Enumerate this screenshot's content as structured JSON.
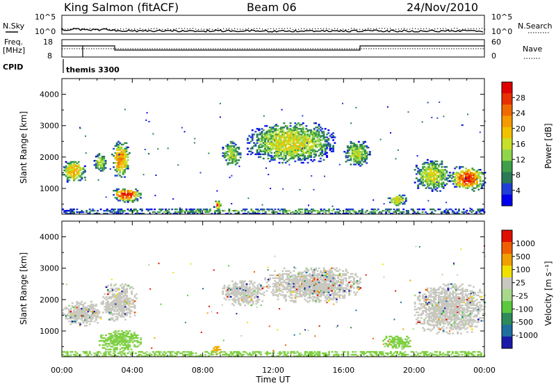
{
  "header": {
    "station": "King Salmon (fitACF)",
    "beam": "Beam 06",
    "date": "24/Nov/2010"
  },
  "summary_panels": {
    "left_labels": {
      "nsky": "N.Sky",
      "freq": "Freq.",
      "freq_unit": "[MHz]",
      "cpid": "CPID"
    },
    "right_labels": {
      "nsearch": "N.Search",
      "nave": "Nave"
    },
    "noise_ticks_left": [
      "10^5",
      "10^0"
    ],
    "noise_ticks_right": [
      "10^5",
      "10^0"
    ],
    "freq_ticks": [
      "18",
      "8"
    ],
    "nave_ticks": [
      "60",
      "0"
    ],
    "cpid_text": "themis 3300"
  },
  "chart_data": [
    {
      "type": "heatmap",
      "name": "power",
      "ylabel": "Slant Range [km]",
      "xlabel": "",
      "ylim": [
        180,
        4500
      ],
      "yticks": [
        1000,
        2000,
        3000,
        4000
      ],
      "colorbar": {
        "label": "Power [dB]",
        "ticks": [
          "28",
          "24",
          "20",
          "16",
          "12",
          "8",
          "4"
        ],
        "colors": [
          "#0000ee",
          "#1f3fd6",
          "#2a7a55",
          "#3e9e4a",
          "#8fd64a",
          "#c8e02a",
          "#f2c100",
          "#f59a00",
          "#f06a00",
          "#e83000",
          "#e00000"
        ]
      },
      "echo_regions": [
        {
          "t0": 0.0,
          "t1": 1.3,
          "r0": 1150,
          "r1": 1900,
          "level": 0.55
        },
        {
          "t0": 1.8,
          "t1": 2.5,
          "r0": 1500,
          "r1": 2100,
          "level": 0.35
        },
        {
          "t0": 2.8,
          "t1": 3.8,
          "r0": 1300,
          "r1": 2500,
          "level": 0.6
        },
        {
          "t0": 2.8,
          "t1": 4.5,
          "r0": 550,
          "r1": 1000,
          "level": 0.8
        },
        {
          "t0": 8.6,
          "t1": 9.0,
          "r0": 300,
          "r1": 600,
          "level": 0.7
        },
        {
          "t0": 9.1,
          "t1": 10.1,
          "r0": 1700,
          "r1": 2500,
          "level": 0.35
        },
        {
          "t0": 10.5,
          "t1": 15.5,
          "r0": 1800,
          "r1": 3100,
          "level": 0.4
        },
        {
          "t0": 16.0,
          "t1": 17.5,
          "r0": 1700,
          "r1": 2500,
          "level": 0.35
        },
        {
          "t0": 18.5,
          "t1": 19.5,
          "r0": 400,
          "r1": 800,
          "level": 0.45
        },
        {
          "t0": 20.0,
          "t1": 22.0,
          "r0": 900,
          "r1": 1900,
          "level": 0.4
        },
        {
          "t0": 22.0,
          "t1": 24.0,
          "r0": 900,
          "r1": 1700,
          "level": 0.75
        },
        {
          "t0": 0.0,
          "t1": 24.0,
          "r0": 180,
          "r1": 330,
          "level": 0.25
        }
      ]
    },
    {
      "type": "heatmap",
      "name": "velocity",
      "ylabel": "Slant Range [km]",
      "xlabel": "Time UT",
      "ylim": [
        180,
        4500
      ],
      "yticks": [
        1000,
        2000,
        3000,
        4000
      ],
      "xticks": [
        "00:00",
        "04:00",
        "08:00",
        "12:00",
        "16:00",
        "20:00",
        "00:00"
      ],
      "colorbar": {
        "label": "Velocity [m s⁻¹]",
        "ticks": [
          "1000",
          "500",
          "100",
          "25",
          "-25",
          "-100",
          "-500",
          "-1000"
        ],
        "colors": [
          "#1a1aaa",
          "#1e6e9e",
          "#2e8a5a",
          "#5cc840",
          "#a8d88a",
          "#c8c8c0",
          "#f0e000",
          "#f0a000",
          "#f06000",
          "#e01000"
        ]
      },
      "echo_regions": [
        {
          "t0": 0.0,
          "t1": 2.2,
          "r0": 1150,
          "r1": 1950,
          "color": "gray"
        },
        {
          "t0": 2.2,
          "t1": 4.2,
          "r0": 1300,
          "r1": 2500,
          "color": "gray"
        },
        {
          "t0": 2.0,
          "t1": 4.5,
          "r0": 350,
          "r1": 1000,
          "color": "green"
        },
        {
          "t0": 8.4,
          "t1": 9.0,
          "r0": 250,
          "r1": 500,
          "color": "orange"
        },
        {
          "t0": 9.0,
          "t1": 11.5,
          "r0": 1800,
          "r1": 2600,
          "color": "gray"
        },
        {
          "t0": 11.5,
          "t1": 17.0,
          "r0": 1900,
          "r1": 3000,
          "color": "gray"
        },
        {
          "t0": 18.2,
          "t1": 19.8,
          "r0": 400,
          "r1": 850,
          "color": "green"
        },
        {
          "t0": 20.0,
          "t1": 24.0,
          "r0": 900,
          "r1": 2500,
          "color": "gray"
        },
        {
          "t0": 0.0,
          "t1": 24.0,
          "r0": 180,
          "r1": 330,
          "color": "green"
        }
      ]
    }
  ]
}
